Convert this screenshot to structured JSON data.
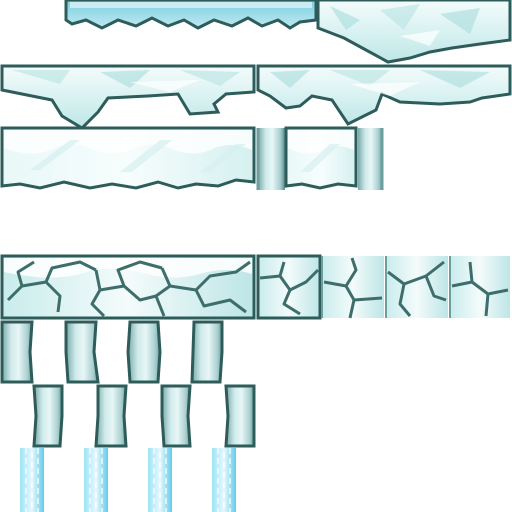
{
  "sheet": {
    "kind": "sprite-sheet",
    "theme": "ice",
    "background": "#ffffff"
  },
  "palette": {
    "outline": "#2d5c5a",
    "outline_dark": "#244a49",
    "ice_light": "#f4fbfb",
    "ice_mid": "#cdeeee",
    "ice_deep": "#9fd6d6",
    "ice_shadow": "#84c2c4",
    "pillar_dark": "#6c9e9f",
    "waterfall_light": "#e6f8ff",
    "waterfall_mid": "#9ee4f5",
    "waterfall_deep": "#62cce8"
  },
  "tiles": [
    {
      "name": "ice-ledge-top-strip",
      "type": "ledge"
    },
    {
      "name": "ice-floating-chunk",
      "type": "platform"
    },
    {
      "name": "ice-platform-left",
      "type": "platform"
    },
    {
      "name": "ice-platform-right",
      "type": "platform"
    },
    {
      "name": "ice-block-wide",
      "type": "block"
    },
    {
      "name": "ice-column-left",
      "type": "column"
    },
    {
      "name": "ice-block-small",
      "type": "block"
    },
    {
      "name": "ice-column-right",
      "type": "column"
    },
    {
      "name": "cracked-ice-wall-wide",
      "type": "wall"
    },
    {
      "name": "cracked-ice-tile",
      "type": "wall",
      "count": 4
    },
    {
      "name": "ice-pillar-segment",
      "type": "pillar",
      "count": 8
    },
    {
      "name": "waterfall-column",
      "type": "waterfall",
      "count": 4
    }
  ]
}
